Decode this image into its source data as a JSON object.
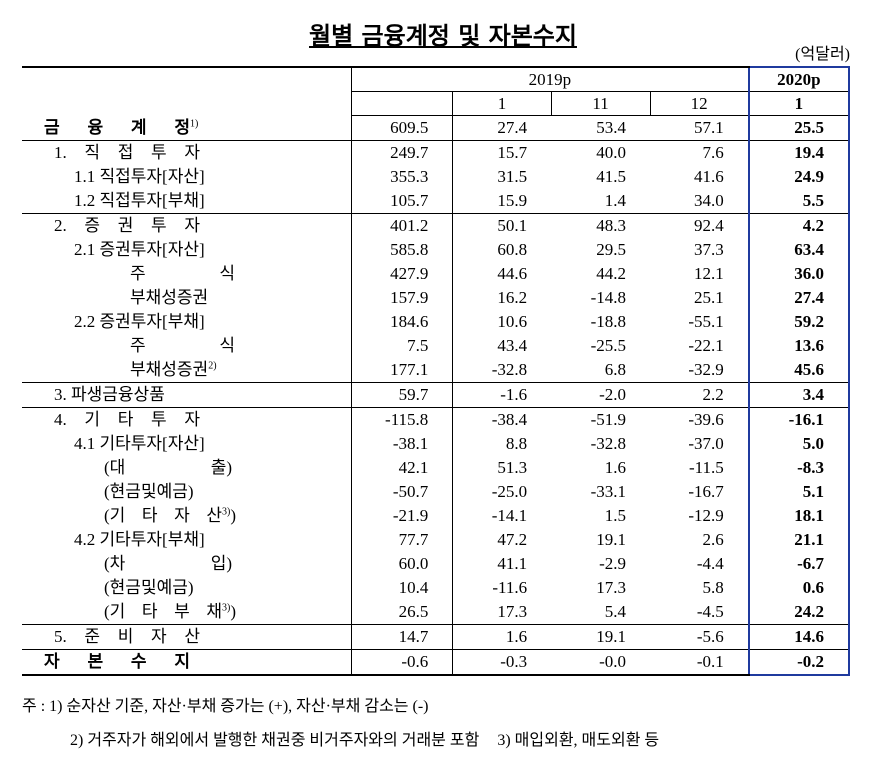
{
  "title": "월별 금융계정 및 자본수지",
  "unit": "(억달러)",
  "header": {
    "year_a": "2019p",
    "year_b": "2020p",
    "months": [
      "1",
      "11",
      "12",
      "1"
    ]
  },
  "table": {
    "rows": [
      {
        "label": "금 융 계 정",
        "note": "1)",
        "values": [
          "609.5",
          "27.4",
          "53.4",
          "57.1",
          "25.5"
        ]
      },
      {
        "label": "1. 직 접 투 자",
        "values": [
          "249.7",
          "15.7",
          "40.0",
          "7.6",
          "19.4"
        ]
      },
      {
        "label": "1.1 직접투자[자산]",
        "values": [
          "355.3",
          "31.5",
          "41.5",
          "41.6",
          "24.9"
        ]
      },
      {
        "label": "1.2 직접투자[부채]",
        "values": [
          "105.7",
          "15.9",
          "1.4",
          "34.0",
          "5.5"
        ]
      },
      {
        "label": "2. 증 권 투 자",
        "values": [
          "401.2",
          "50.1",
          "48.3",
          "92.4",
          "4.2"
        ]
      },
      {
        "label": "2.1 증권투자[자산]",
        "values": [
          "585.8",
          "60.8",
          "29.5",
          "37.3",
          "63.4"
        ]
      },
      {
        "label": "주 식",
        "values": [
          "427.9",
          "44.6",
          "44.2",
          "12.1",
          "36.0"
        ]
      },
      {
        "label": "부채성증권",
        "values": [
          "157.9",
          "16.2",
          "-14.8",
          "25.1",
          "27.4"
        ]
      },
      {
        "label": "2.2 증권투자[부채]",
        "values": [
          "184.6",
          "10.6",
          "-18.8",
          "-55.1",
          "59.2"
        ]
      },
      {
        "label": "주 식",
        "values": [
          "7.5",
          "43.4",
          "-25.5",
          "-22.1",
          "13.6"
        ]
      },
      {
        "label": "부채성증권",
        "note": "2)",
        "values": [
          "177.1",
          "-32.8",
          "6.8",
          "-32.9",
          "45.6"
        ]
      },
      {
        "label": "3. 파생금융상품",
        "values": [
          "59.7",
          "-1.6",
          "-2.0",
          "2.2",
          "3.4"
        ]
      },
      {
        "label": "4. 기 타 투 자",
        "values": [
          "-115.8",
          "-38.4",
          "-51.9",
          "-39.6",
          "-16.1"
        ]
      },
      {
        "label": "4.1 기타투자[자산]",
        "values": [
          "-38.1",
          "8.8",
          "-32.8",
          "-37.0",
          "5.0"
        ]
      },
      {
        "label": "(대 출)",
        "values": [
          "42.1",
          "51.3",
          "1.6",
          "-11.5",
          "-8.3"
        ]
      },
      {
        "label": "(현금및예금)",
        "values": [
          "-50.7",
          "-25.0",
          "-33.1",
          "-16.7",
          "5.1"
        ]
      },
      {
        "label": "(기 타 자 산",
        "note": "3)",
        "label_end": ")",
        "values": [
          "-21.9",
          "-14.1",
          "1.5",
          "-12.9",
          "18.1"
        ]
      },
      {
        "label": "4.2 기타투자[부채]",
        "values": [
          "77.7",
          "47.2",
          "19.1",
          "2.6",
          "21.1"
        ]
      },
      {
        "label": "(차 입)",
        "values": [
          "60.0",
          "41.1",
          "-2.9",
          "-4.4",
          "-6.7"
        ]
      },
      {
        "label": "(현금및예금)",
        "values": [
          "10.4",
          "-11.6",
          "17.3",
          "5.8",
          "0.6"
        ]
      },
      {
        "label": "(기 타 부 채",
        "note": "3)",
        "label_end": ")",
        "values": [
          "26.5",
          "17.3",
          "5.4",
          "-4.5",
          "24.2"
        ]
      },
      {
        "label": "5. 준 비 자 산",
        "values": [
          "14.7",
          "1.6",
          "19.1",
          "-5.6",
          "14.6"
        ]
      },
      {
        "label": "자 본 수 지",
        "values": [
          "-0.6",
          "-0.3",
          "-0.0",
          "-0.1",
          "-0.2"
        ]
      }
    ]
  },
  "footnotes": {
    "lead": "주 :",
    "notes": [
      "1) 순자산 기준, 자산·부채 증가는 (+), 자산·부채 감소는 (-)",
      "2) 거주자가 해외에서 발행한 채권중 비거주자와의 거래분 포함",
      "3) 매입외환, 매도외환 등"
    ]
  }
}
